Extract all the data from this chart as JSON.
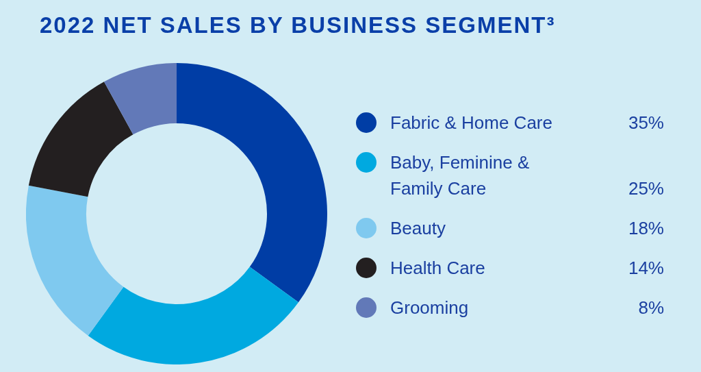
{
  "chart_data": {
    "type": "donut",
    "title": "2022 NET SALES BY BUSINESS SEGMENT³",
    "categories": [
      "Fabric & Home Care",
      "Baby, Feminine & Family Care",
      "Beauty",
      "Health Care",
      "Grooming"
    ],
    "values": [
      35,
      25,
      18,
      14,
      8
    ],
    "colors": [
      "#003da5",
      "#00a9e0",
      "#7fc9ef",
      "#231f20",
      "#6279b8"
    ],
    "value_labels": [
      "35%",
      "25%",
      "18%",
      "14%",
      "8%"
    ],
    "legend": "right"
  }
}
